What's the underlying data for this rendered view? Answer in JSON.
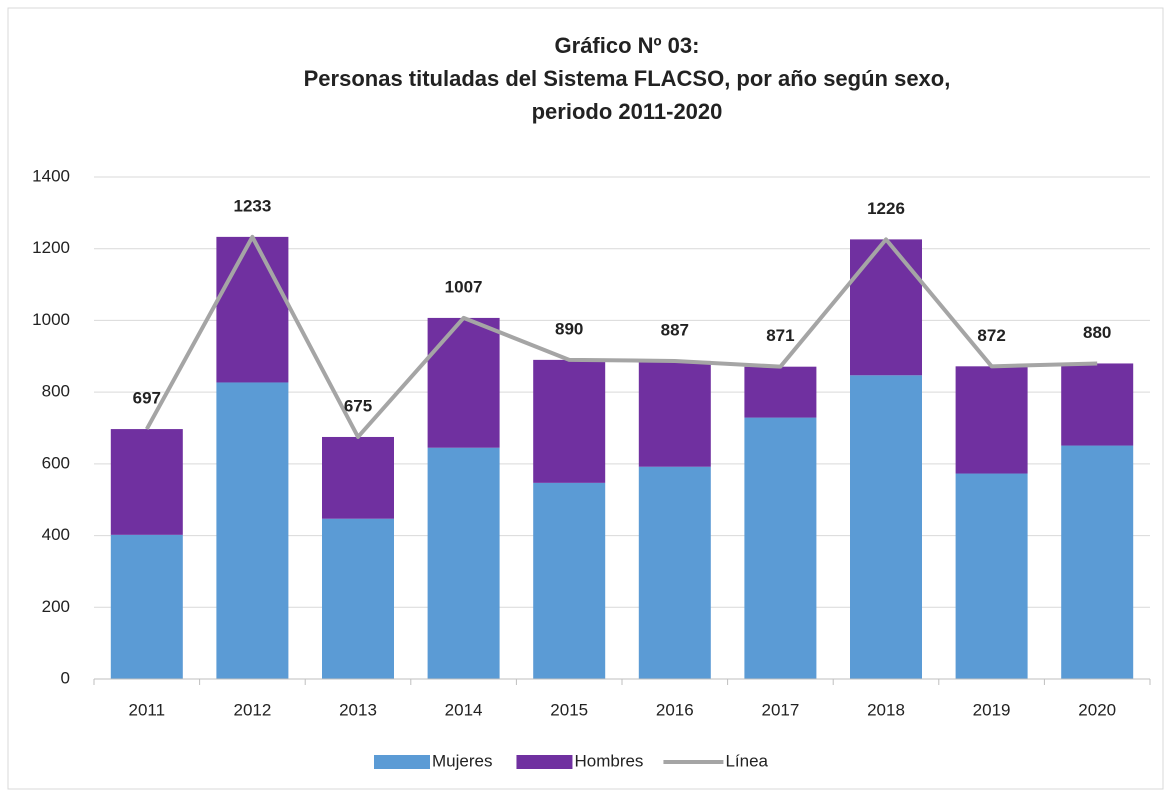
{
  "chart_data": {
    "type": "bar",
    "stacked": true,
    "title": [
      "Gráfico Nº 03:",
      "Personas tituladas del Sistema FLACSO, por año según sexo,",
      "periodo 2011-2020"
    ],
    "categories": [
      "2011",
      "2012",
      "2013",
      "2014",
      "2015",
      "2016",
      "2017",
      "2018",
      "2019",
      "2020"
    ],
    "series": [
      {
        "name": "Mujeres",
        "color": "#5b9bd5",
        "values": [
          402,
          827,
          447,
          645,
          547,
          592,
          729,
          847,
          573,
          651
        ]
      },
      {
        "name": "Hombres",
        "color": "#7030a0",
        "values": [
          295,
          406,
          228,
          362,
          343,
          295,
          142,
          379,
          299,
          229
        ]
      },
      {
        "name": "Línea",
        "type": "line",
        "color": "#a5a5a5",
        "values": [
          697,
          1233,
          675,
          1007,
          890,
          887,
          871,
          1226,
          872,
          880
        ]
      }
    ],
    "ylim": [
      0,
      1400
    ],
    "yticks": [
      0,
      200,
      400,
      600,
      800,
      1000,
      1200,
      1400
    ],
    "grid": true,
    "legend": "bottom"
  }
}
